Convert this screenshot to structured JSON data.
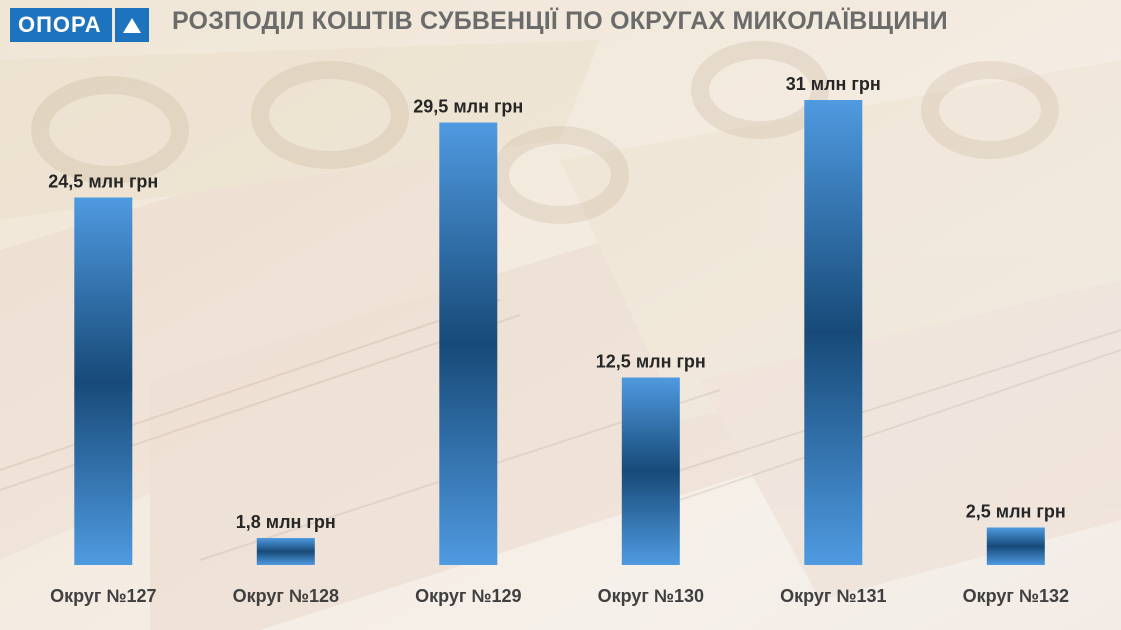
{
  "header": {
    "logo_text": "ОПОРА",
    "title": "РОЗПОДІЛ КОШТІВ СУБВЕНЦІЇ ПО ОКРУГАХ МИКОЛАЇВЩИНИ"
  },
  "colors": {
    "bar_light": "#4f9ae0",
    "bar_dark": "#123f6a",
    "logo_blue": "#1e73be",
    "background": "#f3eadf"
  },
  "chart_data": {
    "type": "bar",
    "title": "РОЗПОДІЛ КОШТІВ СУБВЕНЦІЇ ПО ОКРУГАХ МИКОЛАЇВЩИНИ",
    "categories": [
      "Округ №127",
      "Округ №128",
      "Округ №129",
      "Округ №130",
      "Округ №131",
      "Округ №132"
    ],
    "values": [
      24.5,
      1.8,
      29.5,
      12.5,
      31,
      2.5
    ],
    "value_labels": [
      "24,5 млн грн",
      "1,8 млн грн",
      "29,5 млн грн",
      "12,5 млн грн",
      "31 млн грн",
      "2,5 млн грн"
    ],
    "xlabel": "",
    "ylabel": "",
    "ylim": [
      0,
      31
    ],
    "grid": false,
    "legend": "none"
  }
}
